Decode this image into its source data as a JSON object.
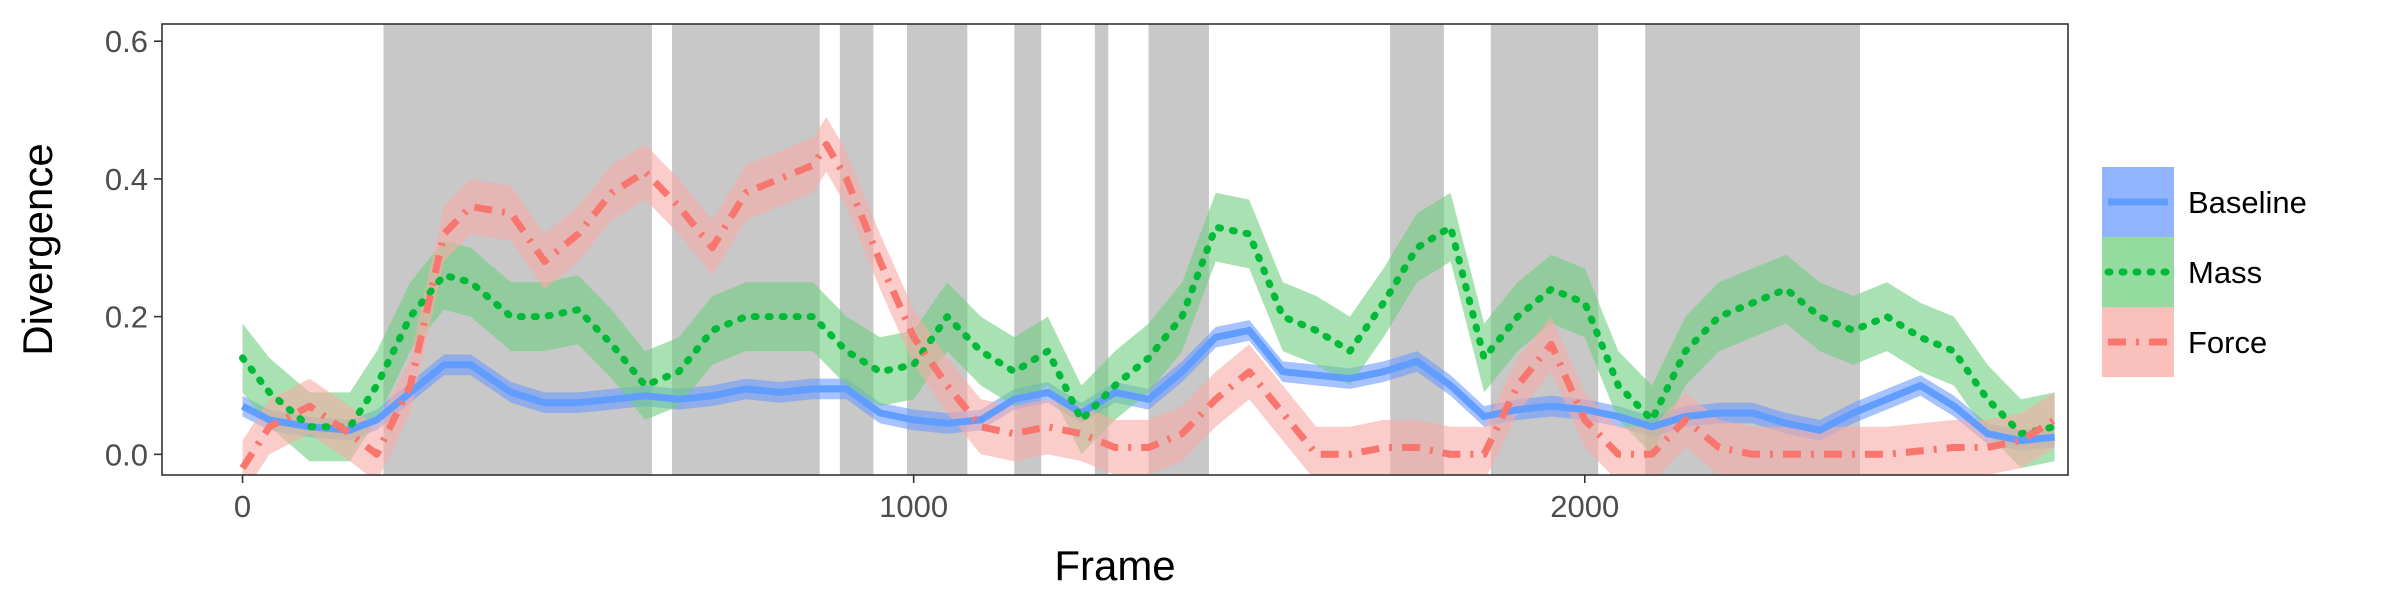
{
  "chart_data": {
    "type": "line",
    "xlabel": "Frame",
    "ylabel": "Divergence",
    "xlim": [
      -120,
      2720
    ],
    "ylim": [
      -0.03,
      0.625
    ],
    "x_ticks": [
      0,
      1000,
      2000
    ],
    "x_tick_labels": [
      "0",
      "1000",
      "2000"
    ],
    "y_ticks": [
      0.0,
      0.2,
      0.4,
      0.6
    ],
    "y_tick_labels": [
      "0.0",
      "0.2",
      "0.4",
      "0.6"
    ],
    "grid": false,
    "legend_position": "right",
    "shaded_intervals": [
      [
        210,
        610
      ],
      [
        640,
        860
      ],
      [
        890,
        940
      ],
      [
        990,
        1080
      ],
      [
        1150,
        1190
      ],
      [
        1270,
        1290
      ],
      [
        1350,
        1440
      ],
      [
        1710,
        1790
      ],
      [
        1860,
        2020
      ],
      [
        2090,
        2410
      ]
    ],
    "series": [
      {
        "name": "Baseline",
        "color": "#619CFF",
        "line_style": "solid",
        "band_color": "#6B9BFF",
        "x": [
          0,
          40,
          100,
          160,
          200,
          250,
          300,
          340,
          400,
          450,
          500,
          550,
          600,
          650,
          700,
          750,
          800,
          850,
          900,
          950,
          1000,
          1050,
          1100,
          1150,
          1200,
          1250,
          1300,
          1350,
          1400,
          1450,
          1500,
          1550,
          1600,
          1650,
          1700,
          1750,
          1800,
          1850,
          1900,
          1950,
          2000,
          2050,
          2100,
          2150,
          2200,
          2250,
          2300,
          2350,
          2400,
          2450,
          2500,
          2550,
          2600,
          2650,
          2700
        ],
        "y": [
          0.07,
          0.05,
          0.04,
          0.035,
          0.05,
          0.09,
          0.13,
          0.13,
          0.09,
          0.075,
          0.075,
          0.08,
          0.085,
          0.08,
          0.085,
          0.095,
          0.09,
          0.095,
          0.095,
          0.06,
          0.05,
          0.045,
          0.05,
          0.08,
          0.09,
          0.06,
          0.09,
          0.08,
          0.12,
          0.17,
          0.18,
          0.12,
          0.115,
          0.11,
          0.12,
          0.135,
          0.1,
          0.055,
          0.065,
          0.07,
          0.065,
          0.055,
          0.04,
          0.055,
          0.06,
          0.06,
          0.045,
          0.035,
          0.06,
          0.08,
          0.1,
          0.07,
          0.03,
          0.02,
          0.025
        ],
        "band": 0.015
      },
      {
        "name": "Mass",
        "color": "#00BA38",
        "line_style": "dotted",
        "band_color": "#6FCF7F",
        "x": [
          0,
          40,
          100,
          160,
          200,
          250,
          300,
          340,
          400,
          450,
          500,
          550,
          600,
          650,
          700,
          750,
          800,
          850,
          900,
          950,
          1000,
          1050,
          1100,
          1150,
          1200,
          1250,
          1300,
          1350,
          1400,
          1450,
          1500,
          1550,
          1600,
          1650,
          1700,
          1750,
          1800,
          1850,
          1900,
          1950,
          2000,
          2050,
          2100,
          2150,
          2200,
          2250,
          2300,
          2350,
          2400,
          2450,
          2500,
          2550,
          2600,
          2650,
          2700
        ],
        "y": [
          0.14,
          0.09,
          0.04,
          0.04,
          0.1,
          0.2,
          0.26,
          0.25,
          0.2,
          0.2,
          0.21,
          0.16,
          0.1,
          0.12,
          0.18,
          0.2,
          0.2,
          0.2,
          0.15,
          0.12,
          0.13,
          0.2,
          0.15,
          0.12,
          0.15,
          0.05,
          0.1,
          0.14,
          0.2,
          0.33,
          0.32,
          0.2,
          0.18,
          0.15,
          0.22,
          0.3,
          0.33,
          0.14,
          0.2,
          0.24,
          0.22,
          0.1,
          0.05,
          0.15,
          0.2,
          0.22,
          0.24,
          0.2,
          0.18,
          0.2,
          0.17,
          0.15,
          0.08,
          0.03,
          0.04
        ],
        "band": 0.05
      },
      {
        "name": "Force",
        "color": "#F8766D",
        "line_style": "dashdot",
        "band_color": "#F8ABA6",
        "x": [
          0,
          40,
          100,
          160,
          200,
          250,
          300,
          340,
          400,
          450,
          500,
          550,
          600,
          650,
          700,
          750,
          800,
          850,
          870,
          900,
          950,
          1000,
          1050,
          1100,
          1150,
          1200,
          1250,
          1300,
          1350,
          1400,
          1450,
          1500,
          1550,
          1600,
          1650,
          1700,
          1750,
          1800,
          1850,
          1900,
          1950,
          2000,
          2050,
          2100,
          2150,
          2200,
          2250,
          2300,
          2350,
          2400,
          2450,
          2500,
          2550,
          2600,
          2650,
          2700
        ],
        "y": [
          -0.02,
          0.04,
          0.07,
          0.03,
          0.0,
          0.1,
          0.32,
          0.36,
          0.35,
          0.28,
          0.32,
          0.38,
          0.41,
          0.36,
          0.3,
          0.38,
          0.4,
          0.42,
          0.45,
          0.4,
          0.28,
          0.17,
          0.1,
          0.04,
          0.03,
          0.04,
          0.03,
          0.01,
          0.01,
          0.03,
          0.08,
          0.12,
          0.06,
          0.0,
          0.0,
          0.01,
          0.01,
          0.0,
          0.0,
          0.1,
          0.16,
          0.05,
          0.0,
          0.0,
          0.05,
          0.01,
          0.0,
          0.0,
          0.0,
          0.0,
          0.0,
          0.005,
          0.01,
          0.01,
          0.02,
          0.05
        ],
        "band": 0.04
      }
    ]
  }
}
